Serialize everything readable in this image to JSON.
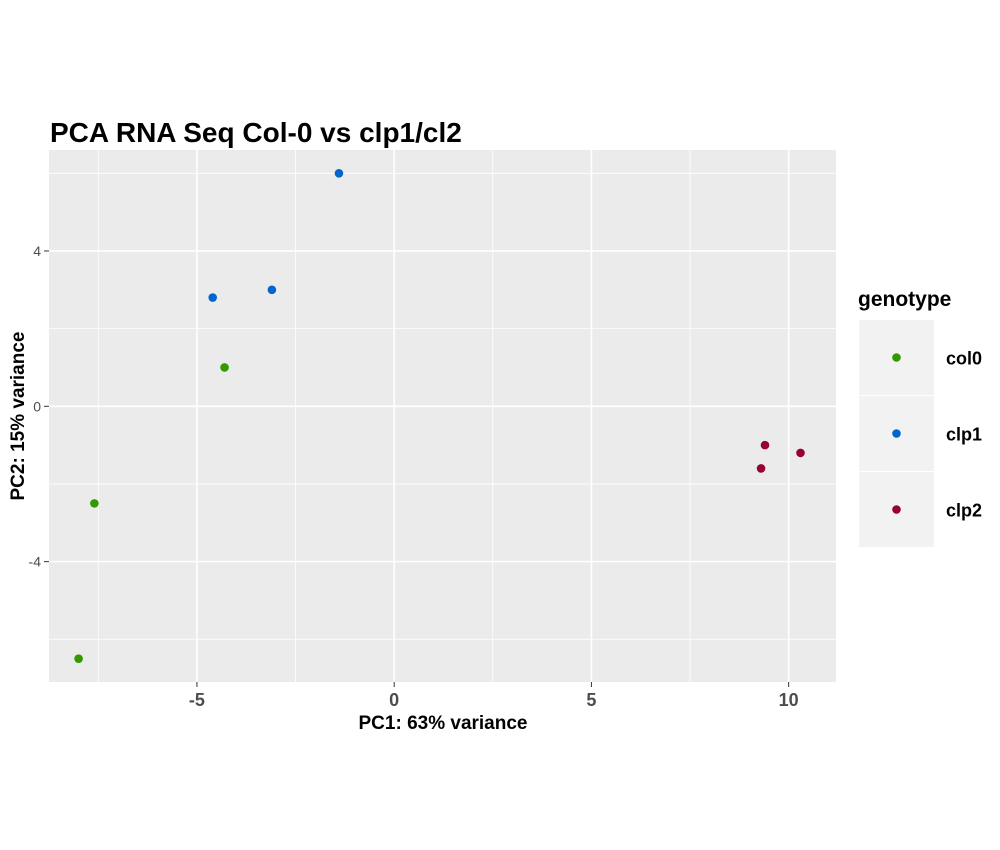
{
  "chart_data": {
    "type": "scatter",
    "title": "PCA RNA Seq Col-0 vs clp1/cl2",
    "xlabel": "PC1: 63% variance",
    "ylabel": "PC2: 15% variance",
    "xlim": [
      -8.75,
      11.2
    ],
    "ylim": [
      -7.1,
      6.6
    ],
    "x_ticks": [
      -5,
      0,
      5,
      10
    ],
    "x_tick_labels": [
      "-5",
      "0",
      "5",
      "10"
    ],
    "y_ticks": [
      -4,
      0,
      4
    ],
    "y_tick_labels": [
      "-4",
      "0",
      "4"
    ],
    "grid": true,
    "legend": {
      "title": "genotype",
      "position": "right"
    },
    "series": [
      {
        "name": "col0",
        "color": "#339900",
        "points": [
          [
            -4.3,
            1.0
          ],
          [
            -7.6,
            -2.5
          ],
          [
            -8.0,
            -6.5
          ]
        ]
      },
      {
        "name": "clp1",
        "color": "#0066cc",
        "points": [
          [
            -1.4,
            6.0
          ],
          [
            -3.1,
            3.0
          ],
          [
            -4.6,
            2.8
          ]
        ]
      },
      {
        "name": "clp2",
        "color": "#990033",
        "points": [
          [
            9.4,
            -1.0
          ],
          [
            10.3,
            -1.2
          ],
          [
            9.3,
            -1.6
          ]
        ]
      }
    ]
  }
}
